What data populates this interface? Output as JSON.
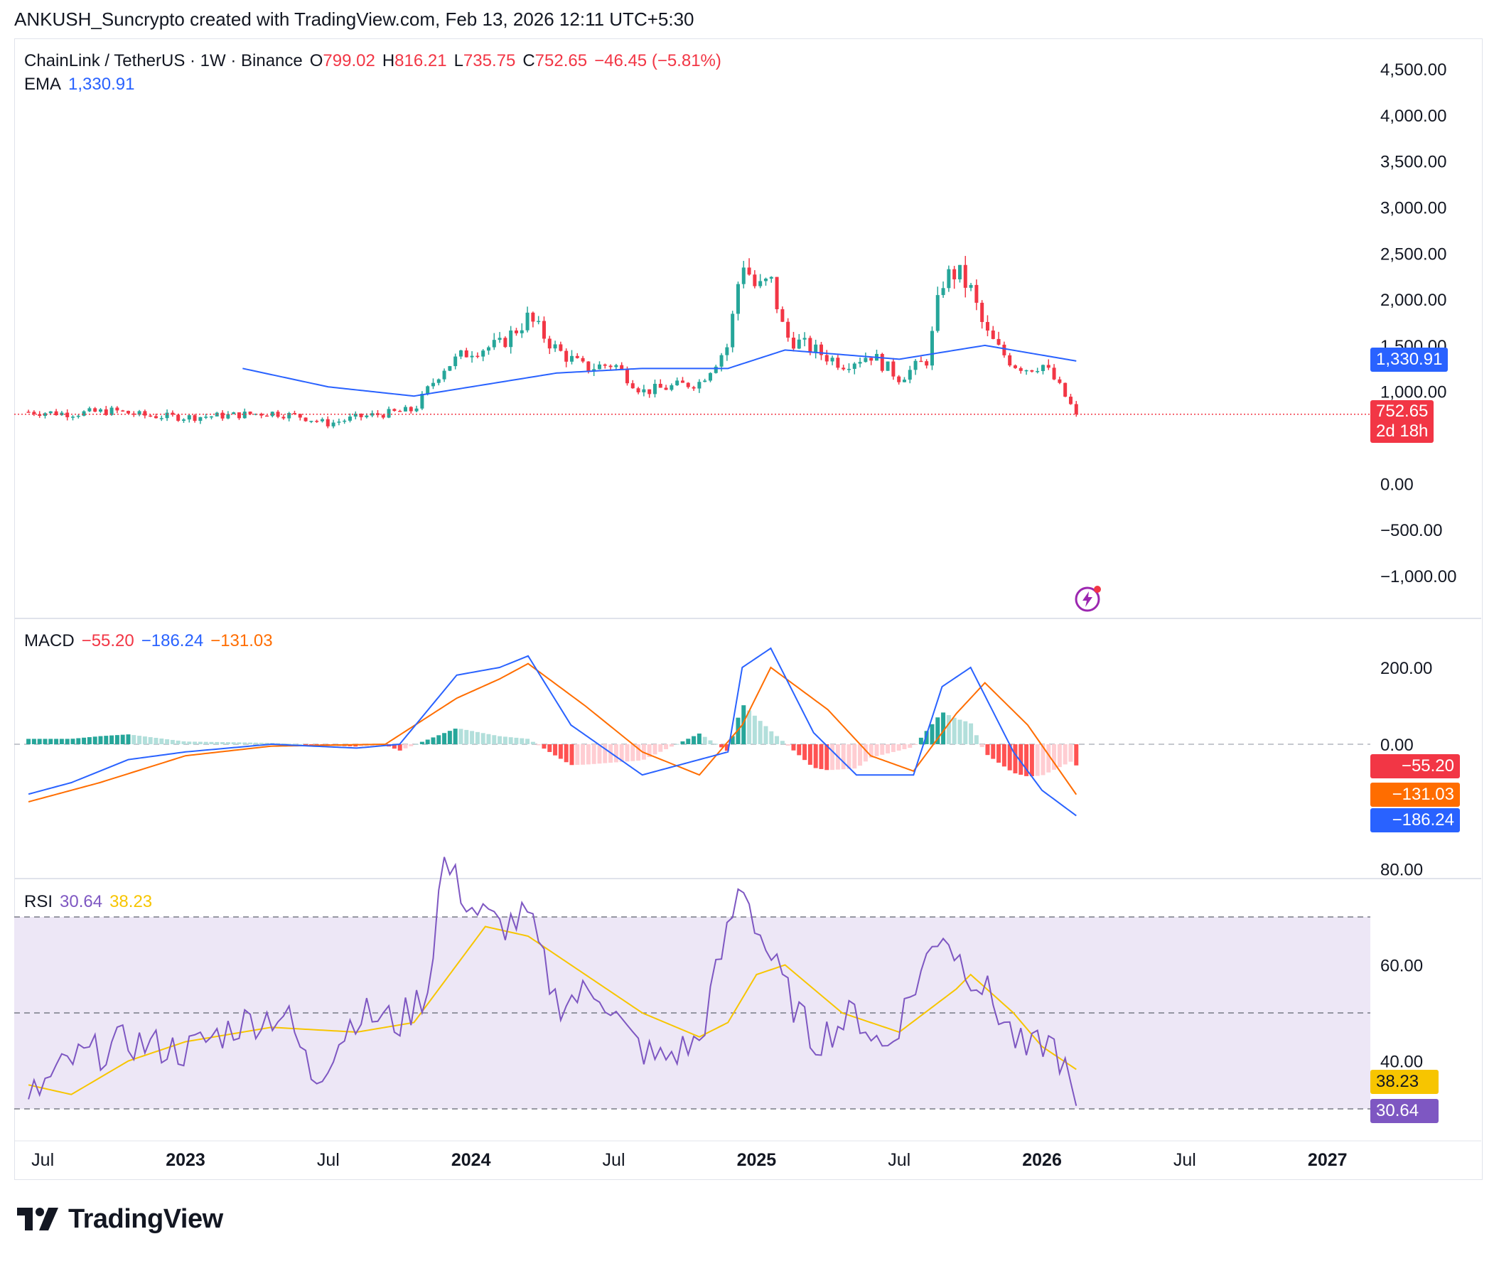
{
  "header": {
    "attribution": "ANKUSH_Suncrypto created with TradingView.com, Feb 13, 2026 12:11 UTC+5:30"
  },
  "colors": {
    "up": "#26a69a",
    "down": "#f23645",
    "ema": "#2962ff",
    "macd_line": "#2962ff",
    "signal_line": "#ff6d00",
    "rsi_line": "#7e57c2",
    "rsi_ma": "#f7c500",
    "rsi_band": "#ede7f6"
  },
  "icons": {
    "logo": "tradingview-logo-icon",
    "alert": "lightning-bolt-icon"
  },
  "main": {
    "symbol": "ChainLink / TetherUS · 1W · Binance",
    "o_label": "O",
    "o_value": "799.02",
    "h_label": "H",
    "h_value": "816.21",
    "l_label": "L",
    "l_value": "735.75",
    "c_label": "C",
    "c_value": "752.65",
    "change": "−46.45 (−5.81%)",
    "ema_label": "EMA",
    "ema_value": "1,330.91",
    "price_tag": "752.65",
    "countdown": "2d 18h",
    "ema_tag": "1,330.91",
    "y_ticks": [
      "4,500.00",
      "4,000.00",
      "3,500.00",
      "3,000.00",
      "2,500.00",
      "2,000.00",
      "1,500.00",
      "1,000.00",
      "0.00",
      "−500.00",
      "−1,000.00"
    ]
  },
  "macd": {
    "label": "MACD",
    "hist": "−55.20",
    "macd": "−186.24",
    "signal": "−131.03",
    "y_ticks": [
      "200.00",
      "0.00"
    ],
    "tag_hist": "−55.20",
    "tag_signal": "−131.03",
    "tag_macd": "−186.24"
  },
  "rsi": {
    "label": "RSI",
    "rsi": "30.64",
    "ma": "38.23",
    "y_ticks": [
      "80.00",
      "60.00",
      "40.00"
    ],
    "tag_ma": "38.23",
    "tag_rsi": "30.64"
  },
  "x_axis": {
    "labels": [
      "Jul",
      "2023",
      "Jul",
      "2024",
      "Jul",
      "2025",
      "Jul",
      "2026",
      "Jul",
      "2027"
    ]
  },
  "logo_text": "TradingView",
  "chart_data": {
    "type": "candlestick",
    "symbol": "LINK/USDT",
    "timeframe": "1W",
    "ylim": [
      -1000,
      4500
    ],
    "ema_last": 1330.91,
    "last_close": 752.65,
    "price_path": [
      [
        2022.45,
        780
      ],
      [
        2022.6,
        760
      ],
      [
        2022.75,
        790
      ],
      [
        2022.85,
        740
      ],
      [
        2023.0,
        720
      ],
      [
        2023.15,
        740
      ],
      [
        2023.3,
        770
      ],
      [
        2023.4,
        730
      ],
      [
        2023.5,
        650
      ],
      [
        2023.6,
        720
      ],
      [
        2023.7,
        760
      ],
      [
        2023.8,
        800
      ],
      [
        2023.9,
        1250
      ],
      [
        2024.0,
        1450
      ],
      [
        2024.1,
        1500
      ],
      [
        2024.2,
        1800
      ],
      [
        2024.3,
        1450
      ],
      [
        2024.4,
        1250
      ],
      [
        2024.5,
        1300
      ],
      [
        2024.6,
        1000
      ],
      [
        2024.7,
        1050
      ],
      [
        2024.8,
        1100
      ],
      [
        2024.9,
        1500
      ],
      [
        2024.95,
        2450
      ],
      [
        2025.0,
        2100
      ],
      [
        2025.05,
        2200
      ],
      [
        2025.1,
        1600
      ],
      [
        2025.2,
        1450
      ],
      [
        2025.3,
        1300
      ],
      [
        2025.4,
        1400
      ],
      [
        2025.5,
        1150
      ],
      [
        2025.6,
        1350
      ],
      [
        2025.65,
        2200
      ],
      [
        2025.7,
        2300
      ],
      [
        2025.75,
        2100
      ],
      [
        2025.8,
        1650
      ],
      [
        2025.85,
        1450
      ],
      [
        2025.9,
        1300
      ],
      [
        2025.95,
        1250
      ],
      [
        2026.0,
        1300
      ],
      [
        2026.05,
        1100
      ],
      [
        2026.12,
        752.65
      ]
    ],
    "ema_path": [
      [
        2023.2,
        1250
      ],
      [
        2023.5,
        1050
      ],
      [
        2023.8,
        950
      ],
      [
        2024.0,
        1050
      ],
      [
        2024.3,
        1200
      ],
      [
        2024.6,
        1250
      ],
      [
        2024.9,
        1250
      ],
      [
        2025.1,
        1450
      ],
      [
        2025.5,
        1350
      ],
      [
        2025.8,
        1500
      ],
      [
        2026.12,
        1330.91
      ]
    ],
    "macd": {
      "macd_path": [
        [
          2022.45,
          -130
        ],
        [
          2022.6,
          -100
        ],
        [
          2022.8,
          -40
        ],
        [
          2023.0,
          -20
        ],
        [
          2023.3,
          0
        ],
        [
          2023.6,
          -10
        ],
        [
          2023.75,
          0
        ],
        [
          2023.95,
          180
        ],
        [
          2024.1,
          200
        ],
        [
          2024.2,
          230
        ],
        [
          2024.35,
          50
        ],
        [
          2024.6,
          -80
        ],
        [
          2024.8,
          -40
        ],
        [
          2024.9,
          -20
        ],
        [
          2024.95,
          200
        ],
        [
          2025.05,
          250
        ],
        [
          2025.2,
          30
        ],
        [
          2025.35,
          -80
        ],
        [
          2025.55,
          -80
        ],
        [
          2025.65,
          150
        ],
        [
          2025.75,
          200
        ],
        [
          2025.9,
          -20
        ],
        [
          2026.0,
          -120
        ],
        [
          2026.12,
          -186.24
        ]
      ],
      "signal_path": [
        [
          2022.45,
          -150
        ],
        [
          2022.7,
          -100
        ],
        [
          2023.0,
          -30
        ],
        [
          2023.3,
          -5
        ],
        [
          2023.7,
          0
        ],
        [
          2023.95,
          120
        ],
        [
          2024.1,
          170
        ],
        [
          2024.2,
          210
        ],
        [
          2024.4,
          100
        ],
        [
          2024.6,
          -20
        ],
        [
          2024.8,
          -80
        ],
        [
          2024.95,
          50
        ],
        [
          2025.05,
          200
        ],
        [
          2025.25,
          90
        ],
        [
          2025.4,
          -30
        ],
        [
          2025.55,
          -70
        ],
        [
          2025.7,
          80
        ],
        [
          2025.8,
          160
        ],
        [
          2025.95,
          50
        ],
        [
          2026.12,
          -131.03
        ]
      ],
      "hist_last": -55.2
    },
    "rsi": {
      "rsi_path": [
        [
          2022.45,
          32
        ],
        [
          2022.6,
          40
        ],
        [
          2022.8,
          44
        ],
        [
          2023.0,
          42
        ],
        [
          2023.2,
          48
        ],
        [
          2023.35,
          50
        ],
        [
          2023.45,
          36
        ],
        [
          2023.6,
          50
        ],
        [
          2023.75,
          48
        ],
        [
          2023.85,
          55
        ],
        [
          2023.9,
          82
        ],
        [
          2024.0,
          72
        ],
        [
          2024.1,
          68
        ],
        [
          2024.2,
          70
        ],
        [
          2024.3,
          52
        ],
        [
          2024.45,
          55
        ],
        [
          2024.55,
          45
        ],
        [
          2024.65,
          40
        ],
        [
          2024.8,
          44
        ],
        [
          2024.85,
          56
        ],
        [
          2024.95,
          78
        ],
        [
          2025.0,
          68
        ],
        [
          2025.1,
          55
        ],
        [
          2025.2,
          44
        ],
        [
          2025.35,
          50
        ],
        [
          2025.45,
          42
        ],
        [
          2025.55,
          55
        ],
        [
          2025.65,
          68
        ],
        [
          2025.7,
          62
        ],
        [
          2025.8,
          55
        ],
        [
          2025.9,
          45
        ],
        [
          2025.95,
          41
        ],
        [
          2026.0,
          44
        ],
        [
          2026.05,
          43
        ],
        [
          2026.12,
          30.64
        ]
      ],
      "ma_path": [
        [
          2022.45,
          35
        ],
        [
          2022.6,
          33
        ],
        [
          2022.8,
          40
        ],
        [
          2023.0,
          44
        ],
        [
          2023.3,
          47
        ],
        [
          2023.6,
          46
        ],
        [
          2023.8,
          48
        ],
        [
          2023.95,
          60
        ],
        [
          2024.05,
          68
        ],
        [
          2024.2,
          66
        ],
        [
          2024.4,
          58
        ],
        [
          2024.6,
          50
        ],
        [
          2024.8,
          45
        ],
        [
          2024.9,
          48
        ],
        [
          2025.0,
          58
        ],
        [
          2025.1,
          60
        ],
        [
          2025.3,
          50
        ],
        [
          2025.5,
          46
        ],
        [
          2025.7,
          55
        ],
        [
          2025.75,
          58
        ],
        [
          2025.9,
          50
        ],
        [
          2026.0,
          43
        ],
        [
          2026.12,
          38.23
        ]
      ],
      "bands": [
        70,
        50,
        30
      ],
      "ylim": [
        25,
        85
      ]
    }
  }
}
